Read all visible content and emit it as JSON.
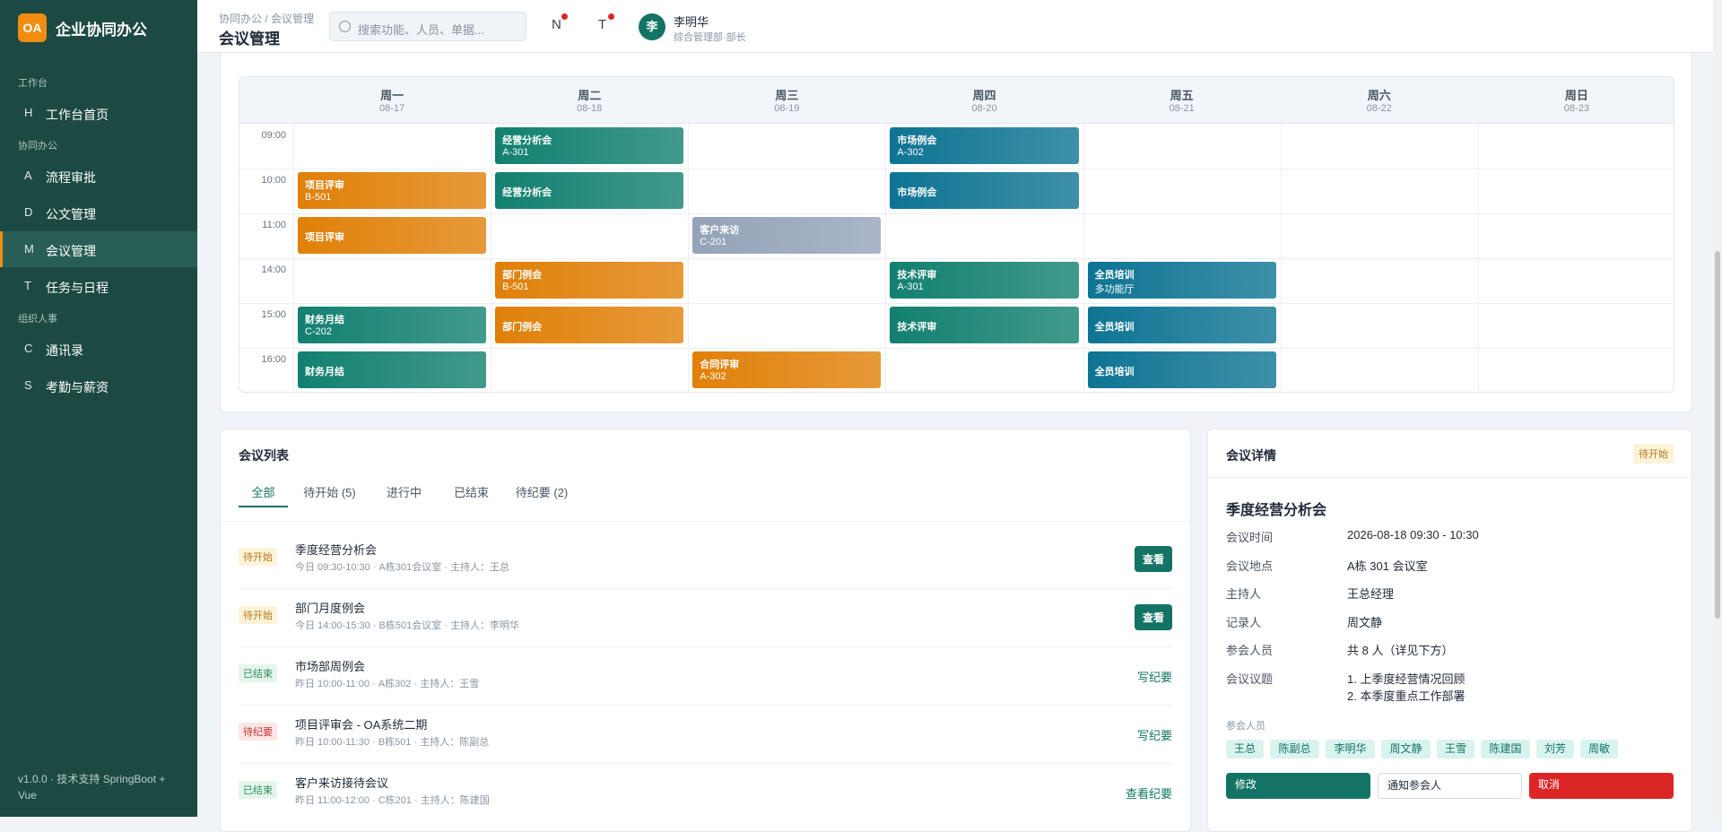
{
  "sidebar": {
    "brand_icon": "OA",
    "brand": "企业协同办公",
    "groups": [
      {
        "title": "工作台",
        "items": [
          {
            "key": "H",
            "label": "工作台首页"
          }
        ]
      },
      {
        "title": "协同办公",
        "items": [
          {
            "key": "A",
            "label": "流程审批"
          },
          {
            "key": "D",
            "label": "公文管理"
          },
          {
            "key": "M",
            "label": "会议管理"
          },
          {
            "key": "T",
            "label": "任务与日程"
          }
        ]
      },
      {
        "title": "组织人事",
        "items": [
          {
            "key": "C",
            "label": "通讯录"
          },
          {
            "key": "S",
            "label": "考勤与薪资"
          }
        ]
      }
    ],
    "active": "会议管理",
    "footer": "v1.0.0 · 技术支持 SpringBoot + Vue"
  },
  "header": {
    "breadcrumb": "协同办公 / 会议管理",
    "title": "会议管理",
    "search_placeholder": "搜索功能、人员、单据...",
    "icons": [
      "N",
      "T"
    ],
    "avatar": "李",
    "user_name": "李明华",
    "user_dept": "综合管理部·部长"
  },
  "calendar": {
    "days": [
      {
        "name": "周一",
        "date": "08-17"
      },
      {
        "name": "周二",
        "date": "08-18"
      },
      {
        "name": "周三",
        "date": "08-19"
      },
      {
        "name": "周四",
        "date": "08-20"
      },
      {
        "name": "周五",
        "date": "08-21"
      },
      {
        "name": "周六",
        "date": "08-22"
      },
      {
        "name": "周日",
        "date": "08-23"
      }
    ],
    "rows": [
      {
        "time": "09:00",
        "cells": [
          null,
          {
            "title": "经营分析会",
            "room": "A-301",
            "color": "#128070"
          },
          null,
          {
            "title": "市场例会",
            "room": "A-302",
            "color": "#0e7493"
          },
          null,
          null,
          null
        ]
      },
      {
        "time": "10:00",
        "cells": [
          {
            "title": "项目评审",
            "room": "B-501",
            "color": "#e08008"
          },
          {
            "title": "经营分析会",
            "room": null,
            "color": "#128070"
          },
          null,
          {
            "title": "市场例会",
            "room": null,
            "color": "#0e7493"
          },
          null,
          null,
          null
        ]
      },
      {
        "time": "11:00",
        "cells": [
          {
            "title": "项目评审",
            "room": null,
            "color": "#e08008"
          },
          null,
          {
            "title": "客户来访",
            "room": "C-201",
            "color": "#94a3b8"
          },
          null,
          null,
          null,
          null
        ]
      },
      {
        "time": "14:00",
        "cells": [
          null,
          {
            "title": "部门例会",
            "room": "B-501",
            "color": "#e08008"
          },
          null,
          {
            "title": "技术评审",
            "room": "A-301",
            "color": "#128070"
          },
          {
            "title": "全员培训",
            "room": "多功能厅",
            "color": "#0e7493"
          },
          null,
          null
        ]
      },
      {
        "time": "15:00",
        "cells": [
          {
            "title": "财务月结",
            "room": "C-202",
            "color": "#128070"
          },
          {
            "title": "部门例会",
            "room": null,
            "color": "#e08008"
          },
          null,
          {
            "title": "技术评审",
            "room": null,
            "color": "#128070"
          },
          {
            "title": "全员培训",
            "room": null,
            "color": "#0e7493"
          },
          null,
          null
        ]
      },
      {
        "time": "16:00",
        "cells": [
          {
            "title": "财务月结",
            "room": null,
            "color": "#128070"
          },
          null,
          {
            "title": "合同评审",
            "room": "A-302",
            "color": "#e08008"
          },
          null,
          {
            "title": "全员培训",
            "room": null,
            "color": "#0e7493"
          },
          null,
          null
        ]
      }
    ]
  },
  "meeting_list": {
    "title": "会议列表",
    "tabs": [
      "全部",
      "待开始 (5)",
      "进行中",
      "已结束",
      "待纪要 (2)"
    ],
    "active_tab": 0,
    "items": [
      {
        "status": "待开始",
        "status_style": "pending",
        "title": "季度经营分析会",
        "meta": "今日 09:30-10:30 · A栋301会议室 · 主持人：王总",
        "action": "查看",
        "action_style": "button"
      },
      {
        "status": "待开始",
        "status_style": "pending",
        "title": "部门月度例会",
        "meta": "今日 14:00-15:30 · B栋501会议室 · 主持人：李明华",
        "action": "查看",
        "action_style": "button"
      },
      {
        "status": "已结束",
        "status_style": "done",
        "title": "市场部周例会",
        "meta": "昨日 10:00-11:00 · A栋302 · 主持人：王雪",
        "action": "写纪要",
        "action_style": "link"
      },
      {
        "status": "待纪要",
        "status_style": "minutes",
        "title": "项目评审会 - OA系统二期",
        "meta": "昨日 10:00-11:30 · B栋501 · 主持人：陈副总",
        "action": "写纪要",
        "action_style": "link"
      },
      {
        "status": "已结束",
        "status_style": "done",
        "title": "客户来访接待会议",
        "meta": "昨日 11:00-12:00 · C栋201 · 主持人：陈建国",
        "action": "查看纪要",
        "action_style": "link"
      }
    ]
  },
  "meeting_detail": {
    "title": "会议详情",
    "badge": "待开始",
    "name": "季度经营分析会",
    "fields": [
      {
        "label": "会议时间",
        "value": [
          "2026-08-18 09:30 - 10:30"
        ]
      },
      {
        "label": "会议地点",
        "value": [
          "A栋 301 会议室"
        ]
      },
      {
        "label": "主持人",
        "value": [
          "王总经理"
        ]
      },
      {
        "label": "记录人",
        "value": [
          "周文静"
        ]
      },
      {
        "label": "参会人员",
        "value": [
          "共 8 人（详见下方）"
        ]
      },
      {
        "label": "会议议题",
        "value": [
          "1. 上季度经营情况回顾",
          "2. 本季度重点工作部署"
        ]
      }
    ],
    "attendees_label": "参会人员",
    "attendees": [
      "王总",
      "陈副总",
      "李明华",
      "周文静",
      "王雪",
      "陈建国",
      "刘芳",
      "周敏"
    ],
    "buttons": [
      "修改",
      "通知参会人",
      "取消"
    ]
  }
}
